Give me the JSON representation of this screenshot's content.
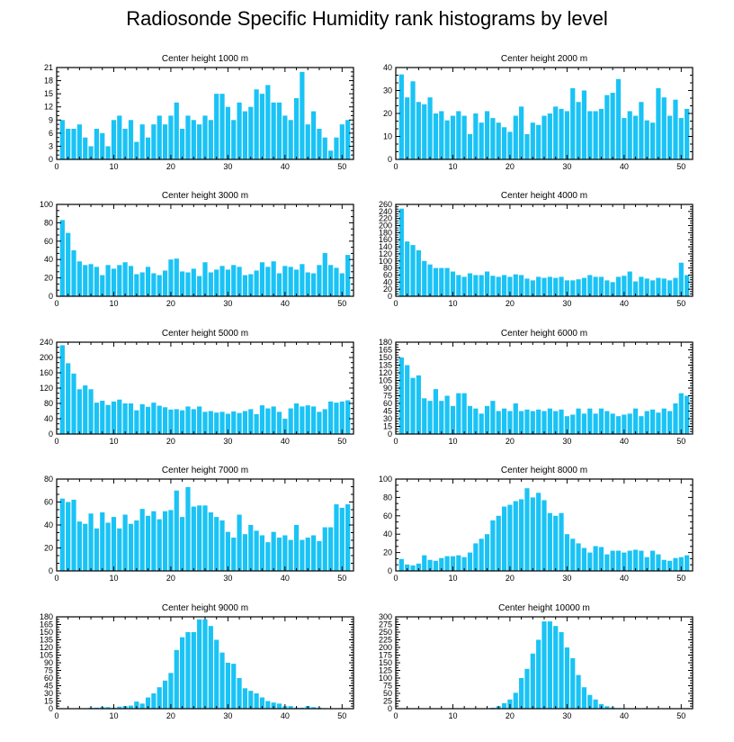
{
  "title": "Radiosonde Specific Humidity rank histograms by level",
  "colors": {
    "bar": "#1ac3f5",
    "axis": "#000000",
    "background": "#ffffff"
  },
  "chart_data": [
    {
      "type": "bar",
      "title": "Center height 1000 m",
      "xlabel": "",
      "ylabel": "",
      "xlim": [
        0,
        52
      ],
      "ylim": [
        0,
        21
      ],
      "xticks": [
        0,
        10,
        20,
        30,
        40,
        50
      ],
      "yticks": [
        0,
        3,
        6,
        9,
        12,
        15,
        18,
        21
      ],
      "x": [
        1,
        2,
        3,
        4,
        5,
        6,
        7,
        8,
        9,
        10,
        11,
        12,
        13,
        14,
        15,
        16,
        17,
        18,
        19,
        20,
        21,
        22,
        23,
        24,
        25,
        26,
        27,
        28,
        29,
        30,
        31,
        32,
        33,
        34,
        35,
        36,
        37,
        38,
        39,
        40,
        41,
        42,
        43,
        44,
        45,
        46,
        47,
        48,
        49,
        50,
        51
      ],
      "values": [
        9,
        7,
        7,
        8,
        5,
        3,
        7,
        6,
        3,
        9,
        10,
        7,
        9,
        4,
        8,
        5,
        8,
        10,
        8,
        10,
        13,
        7,
        10,
        9,
        8,
        10,
        9,
        15,
        15,
        12,
        9,
        13,
        11,
        12,
        16,
        15,
        17,
        13,
        13,
        10,
        9,
        14,
        20,
        8,
        11,
        7,
        5,
        2,
        5,
        8,
        9
      ]
    },
    {
      "type": "bar",
      "title": "Center height 2000 m",
      "xlabel": "",
      "ylabel": "",
      "xlim": [
        0,
        52
      ],
      "ylim": [
        0,
        40
      ],
      "xticks": [
        0,
        10,
        20,
        30,
        40,
        50
      ],
      "yticks": [
        0,
        10,
        20,
        30,
        40
      ],
      "x": [
        1,
        2,
        3,
        4,
        5,
        6,
        7,
        8,
        9,
        10,
        11,
        12,
        13,
        14,
        15,
        16,
        17,
        18,
        19,
        20,
        21,
        22,
        23,
        24,
        25,
        26,
        27,
        28,
        29,
        30,
        31,
        32,
        33,
        34,
        35,
        36,
        37,
        38,
        39,
        40,
        41,
        42,
        43,
        44,
        45,
        46,
        47,
        48,
        49,
        50,
        51
      ],
      "values": [
        37,
        27,
        34,
        25,
        24,
        27,
        20,
        21,
        17,
        19,
        21,
        19,
        11,
        20,
        16,
        21,
        18,
        16,
        14,
        12,
        19,
        23,
        11,
        16,
        15,
        19,
        20,
        23,
        22,
        21,
        31,
        25,
        30,
        21,
        21,
        22,
        28,
        29,
        35,
        18,
        21,
        19,
        25,
        17,
        16,
        31,
        27,
        19,
        26,
        18,
        22
      ]
    },
    {
      "type": "bar",
      "title": "Center height 3000 m",
      "xlabel": "",
      "ylabel": "",
      "xlim": [
        0,
        52
      ],
      "ylim": [
        0,
        100
      ],
      "xticks": [
        0,
        10,
        20,
        30,
        40,
        50
      ],
      "yticks": [
        0,
        20,
        40,
        60,
        80,
        100
      ],
      "x": [
        1,
        2,
        3,
        4,
        5,
        6,
        7,
        8,
        9,
        10,
        11,
        12,
        13,
        14,
        15,
        16,
        17,
        18,
        19,
        20,
        21,
        22,
        23,
        24,
        25,
        26,
        27,
        28,
        29,
        30,
        31,
        32,
        33,
        34,
        35,
        36,
        37,
        38,
        39,
        40,
        41,
        42,
        43,
        44,
        45,
        46,
        47,
        48,
        49,
        50,
        51
      ],
      "values": [
        83,
        69,
        50,
        38,
        34,
        35,
        32,
        23,
        34,
        30,
        34,
        37,
        33,
        24,
        26,
        32,
        25,
        23,
        28,
        40,
        41,
        27,
        26,
        30,
        22,
        37,
        26,
        29,
        33,
        29,
        34,
        32,
        23,
        24,
        28,
        37,
        32,
        38,
        25,
        33,
        32,
        29,
        35,
        26,
        25,
        34,
        47,
        34,
        31,
        25,
        45
      ]
    },
    {
      "type": "bar",
      "title": "Center height 4000 m",
      "xlabel": "",
      "ylabel": "",
      "xlim": [
        0,
        52
      ],
      "ylim": [
        0,
        260
      ],
      "xticks": [
        0,
        10,
        20,
        30,
        40,
        50
      ],
      "yticks": [
        0,
        20,
        40,
        60,
        80,
        100,
        120,
        140,
        160,
        180,
        200,
        220,
        240,
        260
      ],
      "x": [
        1,
        2,
        3,
        4,
        5,
        6,
        7,
        8,
        9,
        10,
        11,
        12,
        13,
        14,
        15,
        16,
        17,
        18,
        19,
        20,
        21,
        22,
        23,
        24,
        25,
        26,
        27,
        28,
        29,
        30,
        31,
        32,
        33,
        34,
        35,
        36,
        37,
        38,
        39,
        40,
        41,
        42,
        43,
        44,
        45,
        46,
        47,
        48,
        49,
        50,
        51
      ],
      "values": [
        248,
        155,
        145,
        130,
        100,
        90,
        80,
        80,
        80,
        70,
        60,
        55,
        65,
        60,
        60,
        70,
        58,
        55,
        60,
        55,
        62,
        60,
        50,
        45,
        55,
        52,
        55,
        52,
        55,
        45,
        45,
        48,
        52,
        60,
        55,
        55,
        45,
        40,
        55,
        58,
        70,
        42,
        55,
        50,
        45,
        52,
        50,
        45,
        52,
        95,
        60
      ]
    },
    {
      "type": "bar",
      "title": "Center height 5000 m",
      "xlabel": "",
      "ylabel": "",
      "xlim": [
        0,
        52
      ],
      "ylim": [
        0,
        240
      ],
      "xticks": [
        0,
        10,
        20,
        30,
        40,
        50
      ],
      "yticks": [
        0,
        40,
        80,
        120,
        160,
        200,
        240
      ],
      "x": [
        1,
        2,
        3,
        4,
        5,
        6,
        7,
        8,
        9,
        10,
        11,
        12,
        13,
        14,
        15,
        16,
        17,
        18,
        19,
        20,
        21,
        22,
        23,
        24,
        25,
        26,
        27,
        28,
        29,
        30,
        31,
        32,
        33,
        34,
        35,
        36,
        37,
        38,
        39,
        40,
        41,
        42,
        43,
        44,
        45,
        46,
        47,
        48,
        49,
        50,
        51
      ],
      "values": [
        232,
        185,
        158,
        117,
        127,
        117,
        82,
        87,
        76,
        85,
        90,
        80,
        80,
        62,
        78,
        71,
        82,
        74,
        70,
        64,
        65,
        62,
        72,
        65,
        72,
        58,
        60,
        56,
        58,
        53,
        59,
        55,
        60,
        65,
        52,
        75,
        67,
        72,
        58,
        40,
        67,
        80,
        72,
        75,
        72,
        58,
        65,
        85,
        82,
        85,
        88
      ]
    },
    {
      "type": "bar",
      "title": "Center height 6000 m",
      "xlabel": "",
      "ylabel": "",
      "xlim": [
        0,
        52
      ],
      "ylim": [
        0,
        180
      ],
      "xticks": [
        0,
        10,
        20,
        30,
        40,
        50
      ],
      "yticks": [
        0,
        15,
        30,
        45,
        60,
        75,
        90,
        105,
        120,
        135,
        150,
        165,
        180
      ],
      "x": [
        1,
        2,
        3,
        4,
        5,
        6,
        7,
        8,
        9,
        10,
        11,
        12,
        13,
        14,
        15,
        16,
        17,
        18,
        19,
        20,
        21,
        22,
        23,
        24,
        25,
        26,
        27,
        28,
        29,
        30,
        31,
        32,
        33,
        34,
        35,
        36,
        37,
        38,
        39,
        40,
        41,
        42,
        43,
        44,
        45,
        46,
        47,
        48,
        49,
        50,
        51
      ],
      "values": [
        150,
        135,
        110,
        115,
        70,
        65,
        88,
        65,
        75,
        55,
        80,
        80,
        55,
        50,
        40,
        55,
        65,
        45,
        50,
        45,
        60,
        45,
        48,
        45,
        48,
        45,
        50,
        45,
        48,
        35,
        38,
        50,
        40,
        50,
        40,
        50,
        45,
        40,
        35,
        38,
        40,
        50,
        35,
        45,
        48,
        42,
        50,
        45,
        60,
        80,
        75
      ]
    },
    {
      "type": "bar",
      "title": "Center height 7000 m",
      "xlabel": "",
      "ylabel": "",
      "xlim": [
        0,
        52
      ],
      "ylim": [
        0,
        80
      ],
      "xticks": [
        0,
        10,
        20,
        30,
        40,
        50
      ],
      "yticks": [
        0,
        20,
        40,
        60,
        80
      ],
      "x": [
        1,
        2,
        3,
        4,
        5,
        6,
        7,
        8,
        9,
        10,
        11,
        12,
        13,
        14,
        15,
        16,
        17,
        18,
        19,
        20,
        21,
        22,
        23,
        24,
        25,
        26,
        27,
        28,
        29,
        30,
        31,
        32,
        33,
        34,
        35,
        36,
        37,
        38,
        39,
        40,
        41,
        42,
        43,
        44,
        45,
        46,
        47,
        48,
        49,
        50,
        51
      ],
      "values": [
        63,
        60,
        62,
        43,
        41,
        50,
        37,
        51,
        42,
        47,
        37,
        49,
        41,
        44,
        54,
        48,
        52,
        45,
        52,
        53,
        70,
        47,
        73,
        56,
        57,
        57,
        51,
        47,
        44,
        34,
        29,
        49,
        32,
        40,
        35,
        31,
        25,
        34,
        29,
        31,
        27,
        40,
        27,
        29,
        31,
        26,
        38,
        38,
        58,
        55,
        58
      ]
    },
    {
      "type": "bar",
      "title": "Center height 8000 m",
      "xlabel": "",
      "ylabel": "",
      "xlim": [
        0,
        52
      ],
      "ylim": [
        0,
        100
      ],
      "xticks": [
        0,
        10,
        20,
        30,
        40,
        50
      ],
      "yticks": [
        0,
        20,
        40,
        60,
        80,
        100
      ],
      "x": [
        1,
        2,
        3,
        4,
        5,
        6,
        7,
        8,
        9,
        10,
        11,
        12,
        13,
        14,
        15,
        16,
        17,
        18,
        19,
        20,
        21,
        22,
        23,
        24,
        25,
        26,
        27,
        28,
        29,
        30,
        31,
        32,
        33,
        34,
        35,
        36,
        37,
        38,
        39,
        40,
        41,
        42,
        43,
        44,
        45,
        46,
        47,
        48,
        49,
        50,
        51
      ],
      "values": [
        13,
        7,
        6,
        8,
        17,
        12,
        11,
        14,
        16,
        16,
        17,
        15,
        20,
        30,
        35,
        40,
        55,
        60,
        70,
        72,
        76,
        78,
        90,
        80,
        85,
        77,
        63,
        60,
        63,
        40,
        35,
        30,
        25,
        20,
        27,
        26,
        18,
        22,
        22,
        20,
        22,
        23,
        22,
        15,
        22,
        18,
        12,
        11,
        14,
        15,
        17
      ]
    },
    {
      "type": "bar",
      "title": "Center height 9000 m",
      "xlabel": "",
      "ylabel": "",
      "xlim": [
        0,
        52
      ],
      "ylim": [
        0,
        180
      ],
      "xticks": [
        0,
        10,
        20,
        30,
        40,
        50
      ],
      "yticks": [
        0,
        15,
        30,
        45,
        60,
        75,
        90,
        105,
        120,
        135,
        150,
        165,
        180
      ],
      "x": [
        1,
        2,
        3,
        4,
        5,
        6,
        7,
        8,
        9,
        10,
        11,
        12,
        13,
        14,
        15,
        16,
        17,
        18,
        19,
        20,
        21,
        22,
        23,
        24,
        25,
        26,
        27,
        28,
        29,
        30,
        31,
        32,
        33,
        34,
        35,
        36,
        37,
        38,
        39,
        40,
        41,
        42,
        43,
        44,
        45,
        46,
        47,
        48,
        49,
        50,
        51
      ],
      "values": [
        0,
        0,
        0,
        0,
        1,
        2,
        2,
        3,
        3,
        2,
        4,
        5,
        6,
        14,
        10,
        22,
        30,
        42,
        55,
        70,
        115,
        140,
        150,
        150,
        175,
        175,
        162,
        135,
        110,
        90,
        88,
        60,
        40,
        35,
        30,
        22,
        15,
        12,
        10,
        5,
        5,
        2,
        2,
        5,
        3,
        2,
        1,
        0,
        0,
        0,
        0
      ]
    },
    {
      "type": "bar",
      "title": "Center height 10000 m",
      "xlabel": "",
      "ylabel": "",
      "xlim": [
        0,
        52
      ],
      "ylim": [
        0,
        300
      ],
      "xticks": [
        0,
        10,
        20,
        30,
        40,
        50
      ],
      "yticks": [
        0,
        25,
        50,
        75,
        100,
        125,
        150,
        175,
        200,
        225,
        250,
        275,
        300
      ],
      "x": [
        1,
        2,
        3,
        4,
        5,
        6,
        7,
        8,
        9,
        10,
        11,
        12,
        13,
        14,
        15,
        16,
        17,
        18,
        19,
        20,
        21,
        22,
        23,
        24,
        25,
        26,
        27,
        28,
        29,
        30,
        31,
        32,
        33,
        34,
        35,
        36,
        37,
        38,
        39,
        40,
        41,
        42,
        43,
        44,
        45,
        46,
        47,
        48,
        49,
        50,
        51
      ],
      "values": [
        0,
        0,
        0,
        0,
        0,
        0,
        0,
        0,
        0,
        0,
        0,
        0,
        0,
        0,
        0,
        0,
        3,
        8,
        18,
        30,
        52,
        100,
        130,
        180,
        225,
        285,
        285,
        270,
        250,
        200,
        165,
        110,
        70,
        45,
        30,
        15,
        8,
        4,
        2,
        1,
        0,
        0,
        0,
        0,
        0,
        0,
        0,
        0,
        0,
        0,
        0
      ]
    }
  ]
}
